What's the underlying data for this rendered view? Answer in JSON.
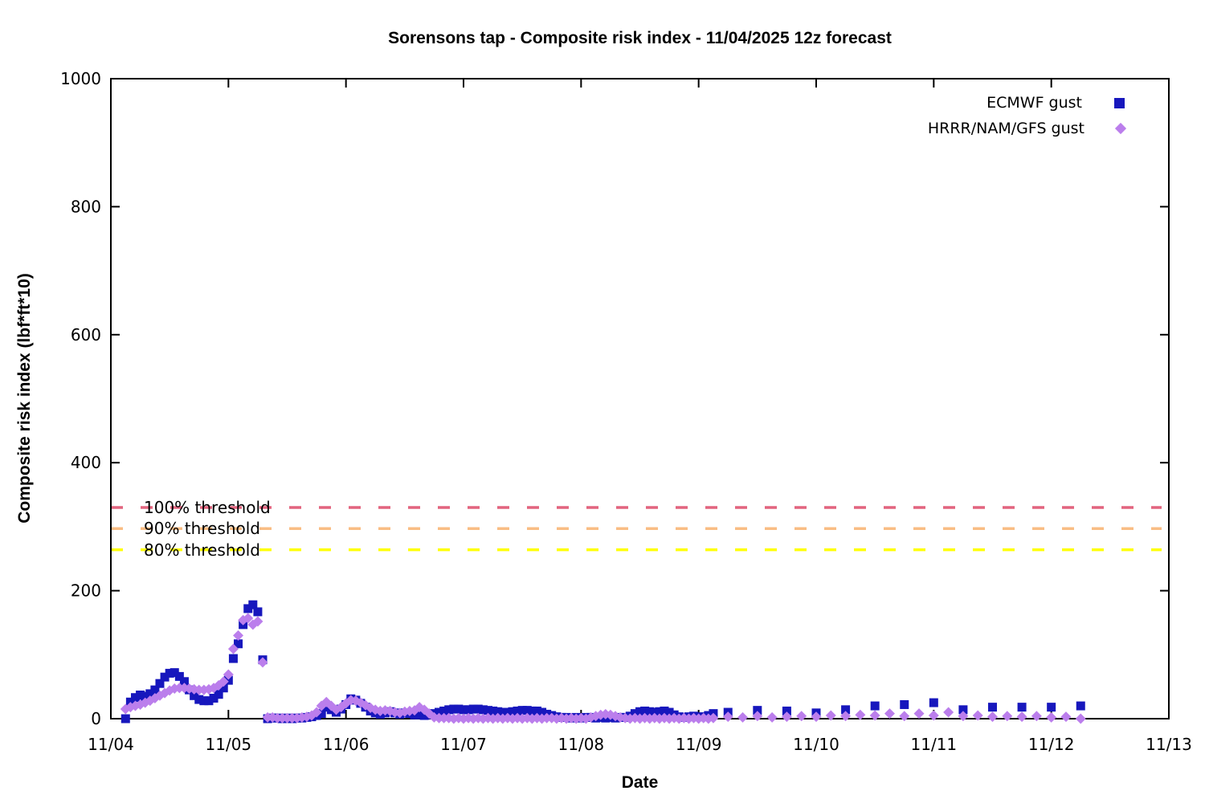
{
  "title": "Sorensons tap - Composite risk index - 11/04/2025 12z forecast",
  "x_axis": {
    "label": "Date",
    "tick_labels": [
      "11/04",
      "11/05",
      "11/06",
      "11/07",
      "11/08",
      "11/09",
      "11/10",
      "11/11",
      "11/12",
      "11/13"
    ],
    "range_days": [
      0,
      9
    ]
  },
  "y_axis": {
    "label": "Composite risk index (lbf*ft*10)",
    "tick_labels": [
      "0",
      "200",
      "400",
      "600",
      "800",
      "1000"
    ],
    "ticks": [
      0,
      200,
      400,
      600,
      800,
      1000
    ],
    "range": [
      0,
      1000
    ]
  },
  "thresholds": [
    {
      "label": "100% threshold",
      "value": 330,
      "color": "#e2647f"
    },
    {
      "label": "90% threshold",
      "value": 297,
      "color": "#f9bd84"
    },
    {
      "label": "80% threshold",
      "value": 264,
      "color": "#ffff00"
    }
  ],
  "chart_data": {
    "type": "scatter",
    "title": "Sorensons tap - Composite risk index - 11/04/2025 12z forecast",
    "xlabel": "Date",
    "ylabel": "Composite risk index (lbf*ft*10)",
    "x_unit": "hours since 11/04 00:00",
    "xlim_days": [
      0,
      9
    ],
    "ylim": [
      0,
      1000
    ],
    "grid": false,
    "legend_position": "top-right",
    "series": [
      {
        "name": "ECMWF gust",
        "marker": "square",
        "color": "#1717bd",
        "segments": [
          {
            "start_hour": 3,
            "step_hours": 1,
            "values": [
              0,
              26,
              33,
              37,
              35,
              39,
              45,
              55,
              65,
              71,
              72,
              66,
              58,
              45,
              36,
              30,
              28,
              28,
              32,
              38,
              48,
              60,
              94,
              117,
              147,
              172,
              178,
              167,
              92,
              0,
              1,
              1,
              0,
              1,
              0,
              1,
              1,
              2,
              3,
              5,
              8,
              18,
              14,
              10,
              15,
              22,
              31,
              29,
              24,
              18,
              12,
              9,
              7,
              9,
              11,
              9,
              7,
              9,
              8,
              6,
              6,
              5,
              6,
              8,
              10,
              12,
              14,
              15,
              15,
              14,
              14,
              15,
              15,
              14,
              13,
              12,
              11,
              10,
              10,
              11,
              12,
              13,
              13,
              12,
              12,
              10,
              7,
              5,
              3,
              2,
              2,
              1,
              2,
              1,
              2,
              2,
              1,
              2,
              1,
              2,
              1,
              2,
              2,
              4,
              8,
              11,
              12,
              11,
              10,
              11,
              12,
              10,
              6,
              3,
              2,
              3,
              4,
              3,
              3,
              5,
              8
            ]
          },
          {
            "start_hour": 126,
            "step_hours": 6,
            "values": [
              10,
              13,
              12,
              9,
              14,
              20,
              22,
              25,
              14,
              18,
              18,
              18,
              20
            ]
          }
        ]
      },
      {
        "name": "HRRR/NAM/GFS gust",
        "marker": "diamond",
        "color": "#bb7eec",
        "segments": [
          {
            "start_hour": 3,
            "step_hours": 1,
            "values": [
              15,
              18,
              20,
              22,
              25,
              28,
              32,
              36,
              40,
              44,
              47,
              48,
              48,
              47,
              46,
              45,
              45,
              46,
              48,
              52,
              58,
              69,
              109,
              130,
              154,
              157,
              147,
              152,
              88,
              2,
              2,
              1,
              1,
              1,
              1,
              1,
              2,
              3,
              5,
              10,
              20,
              26,
              20,
              14,
              18,
              24,
              29,
              28,
              25,
              21,
              17,
              14,
              12,
              13,
              12,
              10,
              9,
              11,
              12,
              13,
              18,
              14,
              8,
              2,
              1,
              1,
              1,
              0,
              1,
              0,
              1,
              0,
              1,
              0,
              1,
              0,
              1,
              0,
              1,
              0,
              1,
              0,
              1,
              0,
              1,
              0,
              1,
              1,
              0,
              1,
              0,
              1,
              0,
              1,
              0,
              2,
              4,
              6,
              7,
              6,
              4,
              2,
              1,
              0,
              1,
              0,
              1,
              0,
              1,
              0,
              1,
              0,
              1,
              0,
              1,
              0,
              1,
              0,
              1,
              0,
              1
            ]
          },
          {
            "start_hour": 126,
            "step_hours": 3,
            "values": [
              3,
              2,
              4,
              2,
              3,
              4,
              3,
              5,
              4,
              6,
              5,
              8,
              4,
              8,
              5,
              10,
              4,
              5,
              3,
              4,
              3,
              4,
              2,
              3,
              0
            ]
          }
        ]
      }
    ]
  }
}
